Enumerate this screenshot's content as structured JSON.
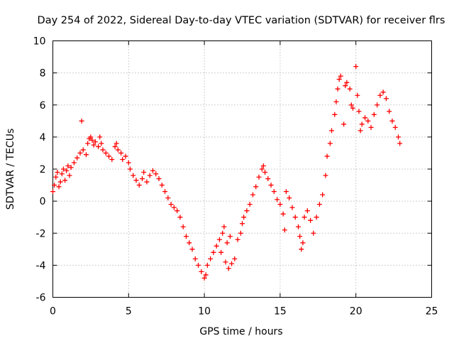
{
  "chart_data": {
    "type": "scatter",
    "title": "Day 254 of 2022, Sidereal Day-to-day VTEC variation (SDTVAR) for receiver flrs",
    "xlabel": "GPS time / hours",
    "ylabel": "SDTVAR / TECUs",
    "xlim": [
      0,
      25
    ],
    "ylim": [
      -6,
      10
    ],
    "xticks": [
      "0",
      "5",
      "10",
      "15",
      "20",
      "25"
    ],
    "yticks": [
      "-6",
      "-4",
      "-2",
      "0",
      "2",
      "4",
      "6",
      "8",
      "10"
    ],
    "grid": true,
    "marker": "+",
    "series": [
      {
        "name": "SDTVAR",
        "color": "#ff0000",
        "points": [
          [
            0.0,
            0.6
          ],
          [
            0.1,
            1.0
          ],
          [
            0.2,
            1.5
          ],
          [
            0.3,
            1.8
          ],
          [
            0.4,
            0.9
          ],
          [
            0.5,
            1.2
          ],
          [
            0.6,
            1.7
          ],
          [
            0.7,
            2.0
          ],
          [
            0.8,
            1.3
          ],
          [
            0.9,
            1.9
          ],
          [
            1.0,
            2.2
          ],
          [
            1.1,
            1.6
          ],
          [
            1.2,
            2.1
          ],
          [
            1.4,
            2.4
          ],
          [
            1.6,
            2.7
          ],
          [
            1.8,
            3.0
          ],
          [
            1.9,
            5.0
          ],
          [
            2.0,
            3.2
          ],
          [
            2.2,
            2.9
          ],
          [
            2.3,
            3.6
          ],
          [
            2.4,
            3.9
          ],
          [
            2.5,
            4.0
          ],
          [
            2.6,
            3.8
          ],
          [
            2.7,
            3.5
          ],
          [
            2.8,
            3.7
          ],
          [
            3.0,
            3.4
          ],
          [
            3.1,
            4.0
          ],
          [
            3.2,
            3.6
          ],
          [
            3.3,
            3.2
          ],
          [
            3.5,
            3.0
          ],
          [
            3.7,
            2.8
          ],
          [
            3.9,
            2.6
          ],
          [
            4.1,
            3.4
          ],
          [
            4.2,
            3.6
          ],
          [
            4.3,
            3.2
          ],
          [
            4.5,
            3.0
          ],
          [
            4.6,
            2.6
          ],
          [
            4.8,
            2.8
          ],
          [
            5.0,
            2.4
          ],
          [
            5.1,
            2.0
          ],
          [
            5.3,
            1.6
          ],
          [
            5.5,
            1.3
          ],
          [
            5.7,
            1.0
          ],
          [
            5.9,
            1.4
          ],
          [
            6.0,
            1.8
          ],
          [
            6.2,
            1.2
          ],
          [
            6.4,
            1.6
          ],
          [
            6.6,
            1.9
          ],
          [
            6.8,
            1.7
          ],
          [
            7.0,
            1.4
          ],
          [
            7.2,
            1.0
          ],
          [
            7.4,
            0.6
          ],
          [
            7.6,
            0.2
          ],
          [
            7.8,
            -0.2
          ],
          [
            8.0,
            -0.4
          ],
          [
            8.2,
            -0.6
          ],
          [
            8.4,
            -1.0
          ],
          [
            8.6,
            -1.6
          ],
          [
            8.8,
            -2.2
          ],
          [
            9.0,
            -2.6
          ],
          [
            9.2,
            -3.0
          ],
          [
            9.4,
            -3.6
          ],
          [
            9.6,
            -4.0
          ],
          [
            9.8,
            -4.4
          ],
          [
            10.0,
            -4.8
          ],
          [
            10.1,
            -4.6
          ],
          [
            10.2,
            -4.0
          ],
          [
            10.4,
            -3.6
          ],
          [
            10.6,
            -3.2
          ],
          [
            10.8,
            -2.8
          ],
          [
            11.0,
            -2.4
          ],
          [
            11.1,
            -3.2
          ],
          [
            11.2,
            -2.0
          ],
          [
            11.3,
            -1.6
          ],
          [
            11.4,
            -3.8
          ],
          [
            11.5,
            -2.6
          ],
          [
            11.6,
            -4.2
          ],
          [
            11.7,
            -2.2
          ],
          [
            11.8,
            -3.9
          ],
          [
            12.0,
            -3.6
          ],
          [
            12.2,
            -2.4
          ],
          [
            12.4,
            -2.0
          ],
          [
            12.5,
            -1.4
          ],
          [
            12.6,
            -1.0
          ],
          [
            12.8,
            -0.6
          ],
          [
            13.0,
            -0.2
          ],
          [
            13.2,
            0.4
          ],
          [
            13.4,
            0.9
          ],
          [
            13.6,
            1.5
          ],
          [
            13.8,
            2.0
          ],
          [
            13.9,
            2.2
          ],
          [
            14.0,
            1.8
          ],
          [
            14.2,
            1.4
          ],
          [
            14.4,
            1.0
          ],
          [
            14.6,
            0.6
          ],
          [
            14.8,
            0.1
          ],
          [
            15.0,
            -0.2
          ],
          [
            15.2,
            -0.8
          ],
          [
            15.3,
            -1.8
          ],
          [
            15.4,
            0.6
          ],
          [
            15.6,
            0.2
          ],
          [
            15.8,
            -0.4
          ],
          [
            16.0,
            -1.0
          ],
          [
            16.2,
            -1.6
          ],
          [
            16.3,
            -2.2
          ],
          [
            16.4,
            -3.0
          ],
          [
            16.5,
            -2.6
          ],
          [
            16.6,
            -1.0
          ],
          [
            16.8,
            -0.6
          ],
          [
            17.0,
            -1.2
          ],
          [
            17.2,
            -2.0
          ],
          [
            17.4,
            -1.0
          ],
          [
            17.6,
            -0.2
          ],
          [
            17.8,
            0.4
          ],
          [
            18.0,
            1.6
          ],
          [
            18.1,
            2.8
          ],
          [
            18.3,
            3.6
          ],
          [
            18.4,
            4.4
          ],
          [
            18.6,
            5.4
          ],
          [
            18.7,
            6.2
          ],
          [
            18.8,
            7.0
          ],
          [
            18.9,
            7.6
          ],
          [
            19.0,
            7.8
          ],
          [
            19.2,
            4.8
          ],
          [
            19.3,
            7.2
          ],
          [
            19.4,
            7.4
          ],
          [
            19.6,
            7.0
          ],
          [
            19.7,
            6.0
          ],
          [
            19.8,
            5.8
          ],
          [
            20.0,
            8.4
          ],
          [
            20.1,
            6.6
          ],
          [
            20.2,
            5.6
          ],
          [
            20.3,
            4.4
          ],
          [
            20.4,
            4.8
          ],
          [
            20.6,
            5.2
          ],
          [
            20.8,
            5.0
          ],
          [
            21.0,
            4.6
          ],
          [
            21.2,
            5.4
          ],
          [
            21.4,
            6.0
          ],
          [
            21.6,
            6.6
          ],
          [
            21.8,
            6.8
          ],
          [
            22.0,
            6.4
          ],
          [
            22.2,
            5.6
          ],
          [
            22.4,
            5.0
          ],
          [
            22.6,
            4.6
          ],
          [
            22.8,
            4.0
          ],
          [
            22.9,
            3.6
          ]
        ]
      }
    ]
  }
}
